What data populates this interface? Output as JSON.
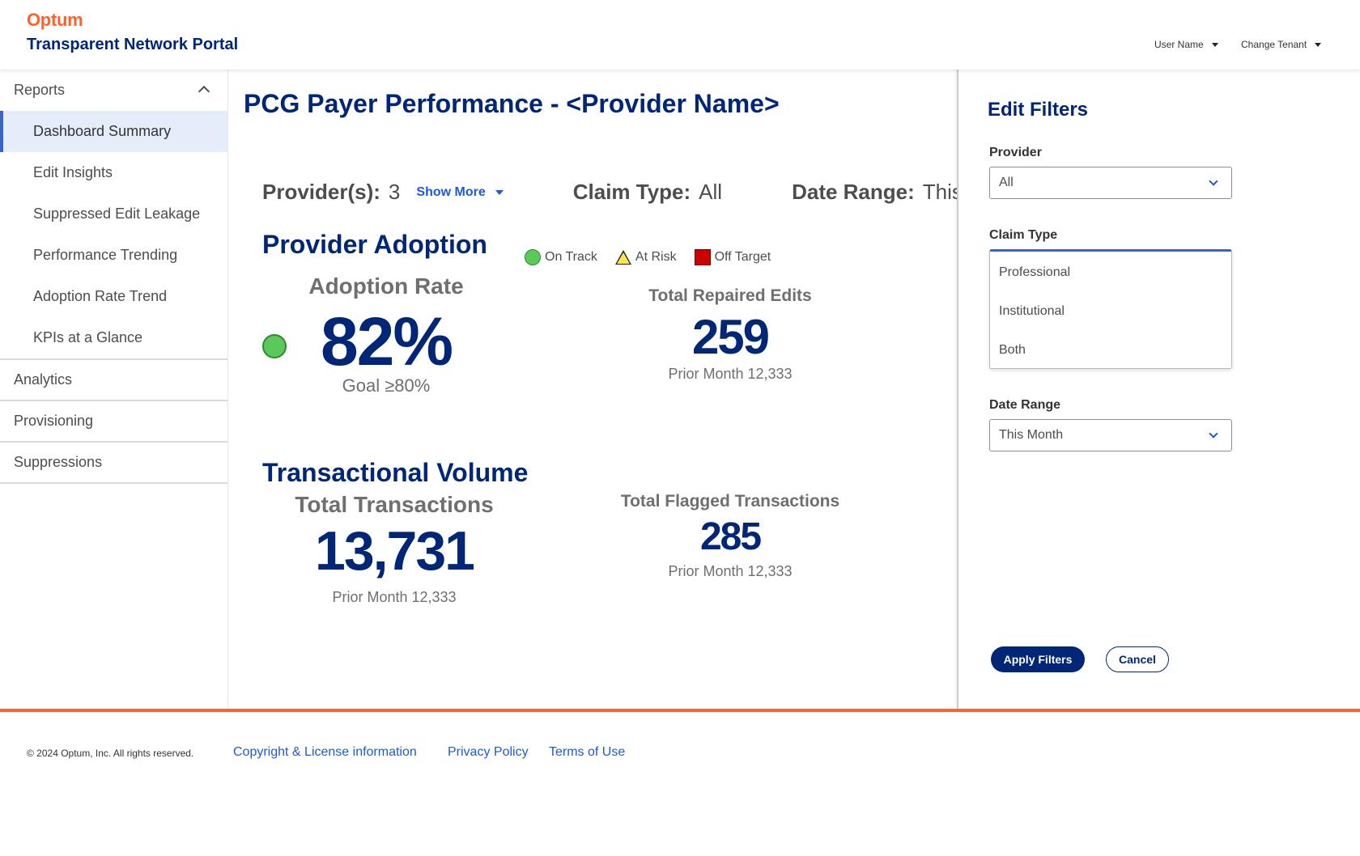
{
  "header": {
    "brand": "Optum",
    "portal_title": "Transparent Network Portal",
    "user_menu_label": "User Name",
    "tenant_menu_label": "Change Tenant"
  },
  "sidebar": {
    "reports_label": "Reports",
    "report_items": [
      {
        "label": "Dashboard Summary",
        "active": true
      },
      {
        "label": "Edit Insights"
      },
      {
        "label": "Suppressed Edit Leakage"
      },
      {
        "label": "Performance Trending"
      },
      {
        "label": "Adoption Rate Trend"
      },
      {
        "label": "KPIs at a Glance"
      }
    ],
    "sections": [
      {
        "label": "Analytics"
      },
      {
        "label": "Provisioning"
      },
      {
        "label": "Suppressions"
      }
    ]
  },
  "main": {
    "title": "PCG Payer Performance - <Provider Name>",
    "filters_summary": {
      "providers_label": "Provider(s):",
      "providers_value": "3",
      "show_more_label": "Show More",
      "claim_type_label": "Claim Type:",
      "claim_type_value": "All",
      "date_range_label": "Date Range:",
      "date_range_value": "This"
    },
    "provider_adoption": {
      "title": "Provider Adoption",
      "legend": {
        "on_track": "On Track",
        "at_risk": "At Risk",
        "off_target": "Off Target"
      },
      "adoption_rate_label": "Adoption Rate",
      "adoption_rate_value": "82%",
      "adoption_goal": "Goal ≥80%",
      "status_color": "#5ac85a",
      "repaired_edits_label": "Total Repaired Edits",
      "repaired_edits_value": "259",
      "repaired_edits_prior": "Prior Month 12,333"
    },
    "transactional_volume": {
      "title": "Transactional Volume",
      "total_label": "Total Transactions",
      "total_value": "13,731",
      "total_prior": "Prior Month 12,333",
      "flagged_label": "Total Flagged Transactions",
      "flagged_value": "285",
      "flagged_prior": "Prior Month 12,333"
    }
  },
  "filter_panel": {
    "title": "Edit Filters",
    "provider_label": "Provider",
    "provider_value": "All",
    "claim_type_label": "Claim Type",
    "claim_type_options": [
      "Professional",
      "Institutional",
      "Both"
    ],
    "date_range_label": "Date Range",
    "date_range_value": "This Month",
    "apply_label": "Apply Filters",
    "cancel_label": "Cancel"
  },
  "footer": {
    "copyright": "© 2024 Optum, Inc. All rights reserved.",
    "links": [
      "Copyright & License information",
      "Privacy Policy",
      "Terms of Use"
    ]
  },
  "colors": {
    "brand_orange": "#ff612b",
    "navy": "#002677",
    "link_blue": "#1d5ad8",
    "on_track": "#5ac85a",
    "at_risk": "#ffe54a",
    "off_target": "#cc0000"
  }
}
